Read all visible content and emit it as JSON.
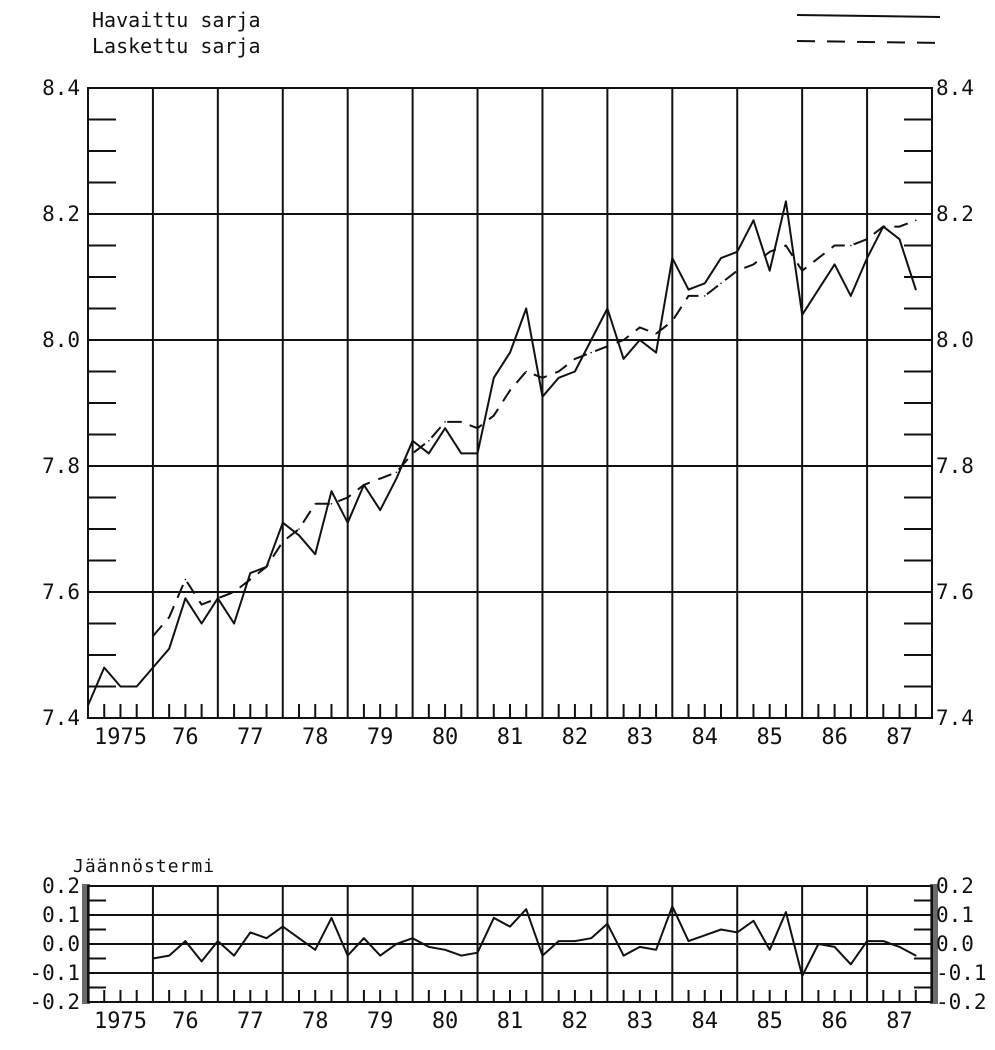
{
  "chart_data": [
    {
      "type": "line",
      "legend": {
        "placement": "top",
        "entries": [
          {
            "name": "Havaittu sarja",
            "style": "solid"
          },
          {
            "name": "Laskettu sarja",
            "style": "dashed"
          }
        ]
      },
      "ylim": [
        7.4,
        8.4
      ],
      "y_ticks": [
        "7.4",
        "7.6",
        "7.8",
        "8.0",
        "8.2",
        "8.4"
      ],
      "x_tick_labels": [
        "1975",
        "76",
        "77",
        "78",
        "79",
        "80",
        "81",
        "82",
        "83",
        "84",
        "85",
        "86",
        "87"
      ],
      "x_range": [
        1975.0,
        1988.0
      ],
      "grid": true,
      "series": [
        {
          "name": "Havaittu sarja",
          "style": "solid",
          "x": [
            1975.0,
            1975.25,
            1975.5,
            1975.75,
            1976.0,
            1976.25,
            1976.5,
            1976.75,
            1977.0,
            1977.25,
            1977.5,
            1977.75,
            1978.0,
            1978.25,
            1978.5,
            1978.75,
            1979.0,
            1979.25,
            1979.5,
            1979.75,
            1980.0,
            1980.25,
            1980.5,
            1980.75,
            1981.0,
            1981.25,
            1981.5,
            1981.75,
            1982.0,
            1982.25,
            1982.5,
            1982.75,
            1983.0,
            1983.25,
            1983.5,
            1983.75,
            1984.0,
            1984.25,
            1984.5,
            1984.75,
            1985.0,
            1985.25,
            1985.5,
            1985.75,
            1986.0,
            1986.25,
            1986.5,
            1986.75,
            1987.0,
            1987.25,
            1987.5,
            1987.75
          ],
          "y": [
            7.42,
            7.48,
            7.45,
            7.45,
            7.48,
            7.51,
            7.59,
            7.55,
            7.59,
            7.55,
            7.63,
            7.64,
            7.71,
            7.69,
            7.66,
            7.76,
            7.71,
            7.77,
            7.73,
            7.78,
            7.84,
            7.82,
            7.86,
            7.82,
            7.82,
            7.94,
            7.98,
            8.05,
            7.91,
            7.94,
            7.95,
            8.0,
            8.05,
            7.97,
            8.0,
            7.98,
            8.13,
            8.08,
            8.09,
            8.13,
            8.14,
            8.19,
            8.11,
            8.22,
            8.04,
            8.08,
            8.12,
            8.07,
            8.13,
            8.18,
            8.16,
            8.08
          ]
        },
        {
          "name": "Laskettu sarja",
          "style": "dashed",
          "x": [
            1976.0,
            1976.25,
            1976.5,
            1976.75,
            1977.0,
            1977.25,
            1977.5,
            1977.75,
            1978.0,
            1978.25,
            1978.5,
            1978.75,
            1979.0,
            1979.25,
            1979.5,
            1979.75,
            1980.0,
            1980.25,
            1980.5,
            1980.75,
            1981.0,
            1981.25,
            1981.5,
            1981.75,
            1982.0,
            1982.25,
            1982.5,
            1982.75,
            1983.0,
            1983.25,
            1983.5,
            1983.75,
            1984.0,
            1984.25,
            1984.5,
            1984.75,
            1985.0,
            1985.25,
            1985.5,
            1985.75,
            1986.0,
            1986.25,
            1986.5,
            1986.75,
            1987.0,
            1987.25,
            1987.5,
            1987.75
          ],
          "y": [
            7.53,
            7.56,
            7.62,
            7.58,
            7.59,
            7.6,
            7.62,
            7.64,
            7.68,
            7.7,
            7.74,
            7.74,
            7.75,
            7.77,
            7.78,
            7.79,
            7.82,
            7.84,
            7.87,
            7.87,
            7.86,
            7.88,
            7.92,
            7.95,
            7.94,
            7.95,
            7.97,
            7.98,
            7.99,
            8.0,
            8.02,
            8.01,
            8.03,
            8.07,
            8.07,
            8.09,
            8.11,
            8.12,
            8.14,
            8.15,
            8.11,
            8.13,
            8.15,
            8.15,
            8.16,
            8.18,
            8.18,
            8.19
          ]
        }
      ]
    },
    {
      "type": "line",
      "title": "Jäännöstermi",
      "ylim": [
        -0.2,
        0.2
      ],
      "y_ticks": [
        "-0.2",
        "-0.1",
        "0.0",
        "0.1",
        "0.2"
      ],
      "x_tick_labels": [
        "1975",
        "76",
        "77",
        "78",
        "79",
        "80",
        "81",
        "82",
        "83",
        "84",
        "85",
        "86",
        "87"
      ],
      "x_range": [
        1975.0,
        1988.0
      ],
      "grid": true,
      "series": [
        {
          "style": "solid",
          "x": [
            1976.0,
            1976.25,
            1976.5,
            1976.75,
            1977.0,
            1977.25,
            1977.5,
            1977.75,
            1978.0,
            1978.25,
            1978.5,
            1978.75,
            1979.0,
            1979.25,
            1979.5,
            1979.75,
            1980.0,
            1980.25,
            1980.5,
            1980.75,
            1981.0,
            1981.25,
            1981.5,
            1981.75,
            1982.0,
            1982.25,
            1982.5,
            1982.75,
            1983.0,
            1983.25,
            1983.5,
            1983.75,
            1984.0,
            1984.25,
            1984.5,
            1984.75,
            1985.0,
            1985.25,
            1985.5,
            1985.75,
            1986.0,
            1986.25,
            1986.5,
            1986.75,
            1987.0,
            1987.25,
            1987.5,
            1987.75
          ],
          "y": [
            -0.05,
            -0.04,
            0.01,
            -0.06,
            0.01,
            -0.04,
            0.04,
            0.02,
            0.06,
            0.02,
            -0.02,
            0.09,
            -0.04,
            0.02,
            -0.04,
            0.0,
            0.02,
            -0.01,
            -0.02,
            -0.04,
            -0.03,
            0.09,
            0.06,
            0.12,
            -0.04,
            0.01,
            0.01,
            0.02,
            0.07,
            -0.04,
            -0.01,
            -0.02,
            0.13,
            0.01,
            0.03,
            0.05,
            0.04,
            0.08,
            -0.02,
            0.11,
            -0.11,
            0.0,
            -0.01,
            -0.07,
            0.01,
            0.01,
            -0.01,
            -0.04
          ]
        }
      ]
    }
  ]
}
